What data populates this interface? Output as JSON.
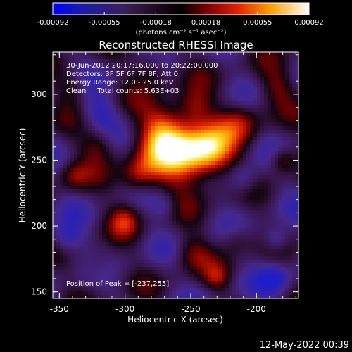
{
  "colorbar": {
    "ticks": [
      "-0.00092",
      "-0.00055",
      "-0.00018",
      "0.00018",
      "0.00055",
      "0.00092"
    ],
    "unit_label": "(photons cm⁻² s⁻¹ asec⁻²)",
    "min": -0.00092,
    "max": 0.00092
  },
  "chart_data": {
    "type": "heatmap",
    "title": "Reconstructed RHESSI Image",
    "xlabel": "Heliocentric X (arcsec)",
    "ylabel": "Heliocentric Y (arcsec)",
    "xlim": [
      -355,
      -168
    ],
    "ylim": [
      145,
      332
    ],
    "x_ticks": [
      "-350",
      "-300",
      "-250",
      "-200"
    ],
    "y_ticks": [
      "150",
      "200",
      "250",
      "300"
    ],
    "annotations": [
      "30-Jun-2012 20:17:16.000 to 20:22:00.000",
      "Detectors: 3F 5F 6F 7F 8F, Att 0",
      "Energy Range: 12.0 - 25.0 keV",
      "Clean     Total counts: 5.63E+03"
    ],
    "peak_label": "Position of Peak = [-237,255]",
    "peak": [
      -237,
      255
    ],
    "colormap": "blue-purple-red-yellow-white"
  },
  "footer": {
    "timestamp": "12-May-2022 00:39"
  }
}
